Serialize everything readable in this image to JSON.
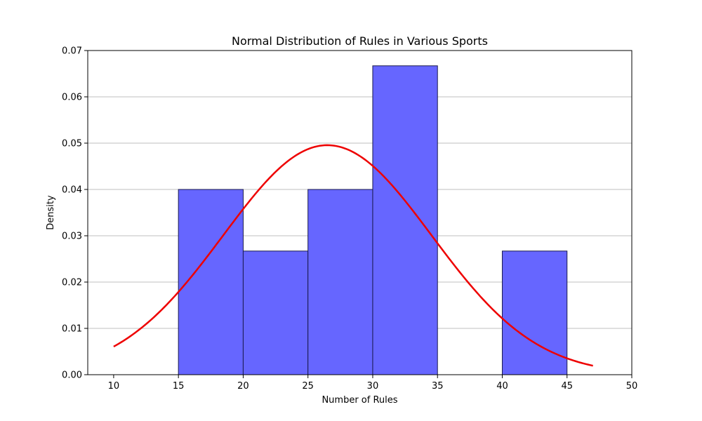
{
  "chart_data": {
    "type": "bar",
    "subtype": "histogram-with-normal-fit",
    "title": "Normal Distribution of Rules in Various Sports",
    "xlabel": "Number of Rules",
    "ylabel": "Density",
    "xlim": [
      8,
      50
    ],
    "ylim": [
      0,
      0.07
    ],
    "xticks": [
      10,
      15,
      20,
      25,
      30,
      35,
      40,
      45,
      50
    ],
    "yticks": [
      0.0,
      0.01,
      0.02,
      0.03,
      0.04,
      0.05,
      0.06,
      0.07
    ],
    "ytick_labels": [
      "0.00",
      "0.01",
      "0.02",
      "0.03",
      "0.04",
      "0.05",
      "0.06",
      "0.07"
    ],
    "grid": "y",
    "bins": [
      {
        "start": 15,
        "end": 20,
        "density": 0.04
      },
      {
        "start": 20,
        "end": 25,
        "density": 0.0267
      },
      {
        "start": 25,
        "end": 30,
        "density": 0.04
      },
      {
        "start": 30,
        "end": 35,
        "density": 0.0667
      },
      {
        "start": 40,
        "end": 45,
        "density": 0.0267
      }
    ],
    "normal_fit": {
      "mean": 26.5,
      "std": 8.05,
      "x_range": [
        10,
        47
      ]
    },
    "colors": {
      "bar_fill": "#6666ff",
      "bar_edge": "#1a1a4d",
      "curve": "#ee0000",
      "grid": "#bfbfbf"
    }
  }
}
